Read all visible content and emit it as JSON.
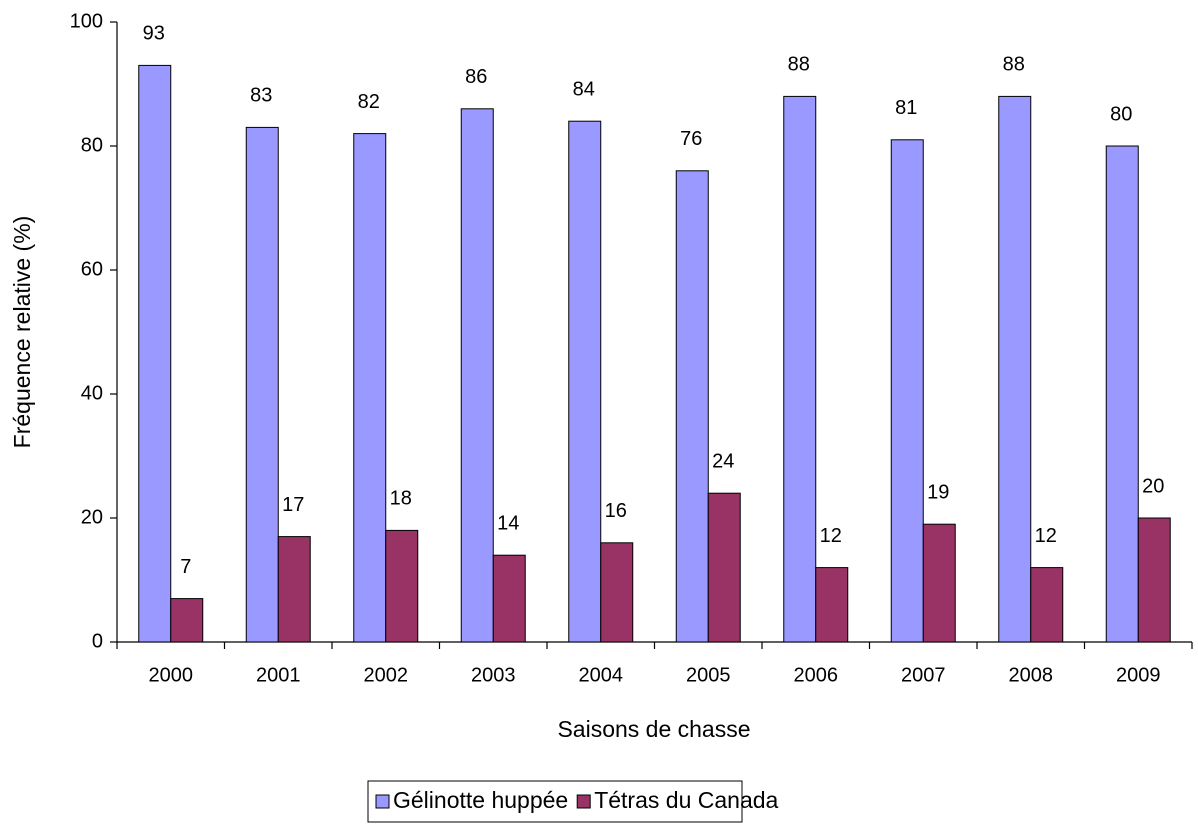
{
  "chart_data": {
    "type": "bar",
    "x_label": "Saisons de chasse",
    "y_label": "Fréquence relative (%)",
    "categories": [
      "2000",
      "2001",
      "2002",
      "2003",
      "2004",
      "2005",
      "2006",
      "2007",
      "2008",
      "2009"
    ],
    "series": [
      {
        "name": "Gélinotte huppée",
        "color": "#9999ff",
        "values": [
          93,
          83,
          82,
          86,
          84,
          76,
          88,
          81,
          88,
          80
        ]
      },
      {
        "name": "Tétras du Canada",
        "color": "#993366",
        "values": [
          7,
          17,
          18,
          14,
          16,
          24,
          12,
          19,
          12,
          20
        ]
      }
    ],
    "ylim": [
      0,
      100
    ],
    "yticks": [
      0,
      20,
      40,
      60,
      80,
      100
    ],
    "grid": false,
    "legend": "bottom"
  }
}
